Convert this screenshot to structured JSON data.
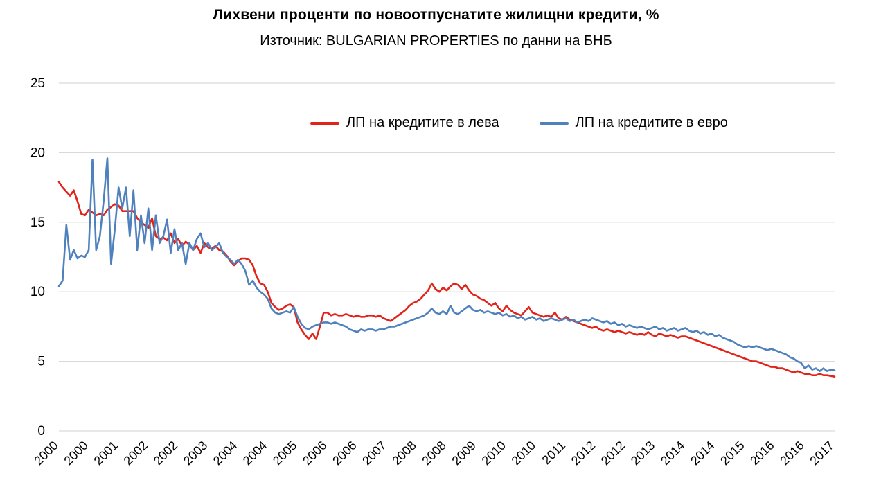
{
  "chart_data": {
    "type": "line",
    "title": "Лихвени проценти по новоотпуснатите жилищни кредити, %",
    "subtitle": "Източник: BULGARIAN PROPERTIES по данни на БНБ",
    "xlabel": "",
    "ylabel": "",
    "ylim": [
      0,
      25
    ],
    "y_ticks": [
      0,
      5,
      10,
      15,
      20,
      25
    ],
    "grid": true,
    "legend_position": "top-inside",
    "x_labels": [
      "2000",
      "2000",
      "2001",
      "2002",
      "2002",
      "2003",
      "2004",
      "2004",
      "2005",
      "2006",
      "2006",
      "2007",
      "2008",
      "2008",
      "2009",
      "2010",
      "2010",
      "2011",
      "2012",
      "2012",
      "2013",
      "2014",
      "2014",
      "2015",
      "2016",
      "2016",
      "2017"
    ],
    "x_label_step_months": 8,
    "colors": {
      "grid": "#d9d9d9",
      "axis_text": "#000000"
    },
    "series": [
      {
        "name": "ЛП на кредитите в лева",
        "color": "#e2231a",
        "values": [
          17.9,
          17.5,
          17.2,
          16.9,
          17.3,
          16.5,
          15.6,
          15.5,
          15.9,
          15.7,
          15.5,
          15.6,
          15.5,
          15.9,
          16.1,
          16.3,
          16.2,
          15.8,
          15.8,
          15.8,
          15.8,
          15.3,
          15.0,
          14.8,
          14.6,
          15.3,
          14.0,
          13.8,
          13.9,
          13.7,
          14.2,
          13.5,
          13.8,
          13.3,
          13.6,
          13.4,
          13.0,
          13.3,
          12.8,
          13.5,
          13.2,
          13.1,
          13.3,
          13.0,
          12.9,
          12.6,
          12.2,
          11.9,
          12.2,
          12.4,
          12.4,
          12.3,
          11.9,
          11.1,
          10.6,
          10.5,
          10.0,
          9.2,
          8.9,
          8.7,
          8.8,
          9.0,
          9.1,
          8.9,
          7.8,
          7.3,
          6.9,
          6.6,
          7.0,
          6.6,
          7.5,
          8.5,
          8.5,
          8.3,
          8.4,
          8.3,
          8.3,
          8.4,
          8.3,
          8.2,
          8.3,
          8.2,
          8.2,
          8.3,
          8.3,
          8.2,
          8.3,
          8.1,
          8.0,
          7.9,
          8.1,
          8.3,
          8.5,
          8.7,
          9.0,
          9.2,
          9.3,
          9.5,
          9.8,
          10.1,
          10.6,
          10.2,
          10.0,
          10.3,
          10.1,
          10.4,
          10.6,
          10.5,
          10.2,
          10.5,
          10.1,
          9.8,
          9.7,
          9.5,
          9.4,
          9.2,
          9.0,
          9.2,
          8.8,
          8.6,
          9.0,
          8.7,
          8.5,
          8.4,
          8.3,
          8.6,
          8.9,
          8.5,
          8.4,
          8.3,
          8.2,
          8.3,
          8.2,
          8.5,
          8.1,
          8.0,
          8.2,
          8.0,
          7.9,
          7.8,
          7.7,
          7.6,
          7.5,
          7.4,
          7.5,
          7.3,
          7.2,
          7.3,
          7.2,
          7.1,
          7.2,
          7.1,
          7.0,
          7.1,
          7.0,
          6.9,
          7.0,
          6.9,
          7.1,
          6.9,
          6.8,
          7.0,
          6.9,
          6.8,
          6.9,
          6.8,
          6.7,
          6.8,
          6.8,
          6.7,
          6.6,
          6.5,
          6.4,
          6.3,
          6.2,
          6.1,
          6.0,
          5.9,
          5.8,
          5.7,
          5.6,
          5.5,
          5.4,
          5.3,
          5.2,
          5.1,
          5.0,
          5.0,
          4.9,
          4.8,
          4.7,
          4.6,
          4.6,
          4.5,
          4.5,
          4.4,
          4.3,
          4.2,
          4.3,
          4.2,
          4.1,
          4.1,
          4.0,
          4.0,
          4.1,
          4.0,
          4.0,
          3.95,
          3.9
        ]
      },
      {
        "name": "ЛП на кредитите в евро",
        "color": "#4f81bd",
        "values": [
          10.4,
          10.8,
          14.8,
          12.3,
          13.0,
          12.4,
          12.6,
          12.5,
          13.0,
          19.5,
          13.0,
          14.0,
          16.5,
          19.6,
          12.0,
          14.5,
          17.5,
          16.0,
          17.5,
          14.0,
          17.3,
          13.0,
          15.5,
          13.5,
          16.0,
          13.0,
          15.5,
          13.5,
          14.0,
          15.2,
          12.8,
          14.5,
          13.0,
          13.5,
          12.0,
          13.5,
          13.0,
          13.8,
          14.2,
          13.2,
          13.5,
          13.0,
          13.2,
          13.5,
          12.8,
          12.5,
          12.3,
          12.0,
          12.3,
          12.0,
          11.5,
          10.5,
          10.8,
          10.3,
          10.0,
          9.8,
          9.5,
          8.8,
          8.5,
          8.4,
          8.5,
          8.6,
          8.5,
          8.9,
          8.2,
          7.7,
          7.4,
          7.3,
          7.5,
          7.6,
          7.7,
          7.8,
          7.8,
          7.7,
          7.8,
          7.7,
          7.6,
          7.5,
          7.3,
          7.2,
          7.1,
          7.3,
          7.2,
          7.3,
          7.3,
          7.2,
          7.3,
          7.3,
          7.4,
          7.5,
          7.5,
          7.6,
          7.7,
          7.8,
          7.9,
          8.0,
          8.1,
          8.2,
          8.3,
          8.5,
          8.8,
          8.5,
          8.4,
          8.6,
          8.4,
          9.0,
          8.5,
          8.4,
          8.6,
          8.8,
          9.0,
          8.7,
          8.6,
          8.7,
          8.5,
          8.6,
          8.5,
          8.4,
          8.5,
          8.3,
          8.4,
          8.2,
          8.3,
          8.1,
          8.2,
          8.0,
          8.1,
          8.2,
          8.0,
          8.1,
          7.9,
          8.0,
          8.1,
          8.0,
          7.9,
          8.0,
          8.1,
          7.9,
          8.0,
          7.8,
          7.9,
          8.0,
          7.9,
          8.1,
          8.0,
          7.9,
          7.8,
          7.9,
          7.7,
          7.8,
          7.6,
          7.7,
          7.5,
          7.6,
          7.5,
          7.4,
          7.5,
          7.4,
          7.3,
          7.4,
          7.5,
          7.3,
          7.4,
          7.2,
          7.3,
          7.4,
          7.2,
          7.3,
          7.4,
          7.2,
          7.1,
          7.2,
          7.0,
          7.1,
          6.9,
          7.0,
          6.8,
          6.9,
          6.7,
          6.6,
          6.5,
          6.4,
          6.2,
          6.1,
          6.0,
          6.1,
          6.0,
          6.1,
          6.0,
          5.9,
          5.8,
          5.9,
          5.8,
          5.7,
          5.6,
          5.5,
          5.3,
          5.2,
          5.0,
          4.9,
          4.5,
          4.7,
          4.4,
          4.5,
          4.3,
          4.5,
          4.3,
          4.4,
          4.35
        ]
      }
    ]
  }
}
